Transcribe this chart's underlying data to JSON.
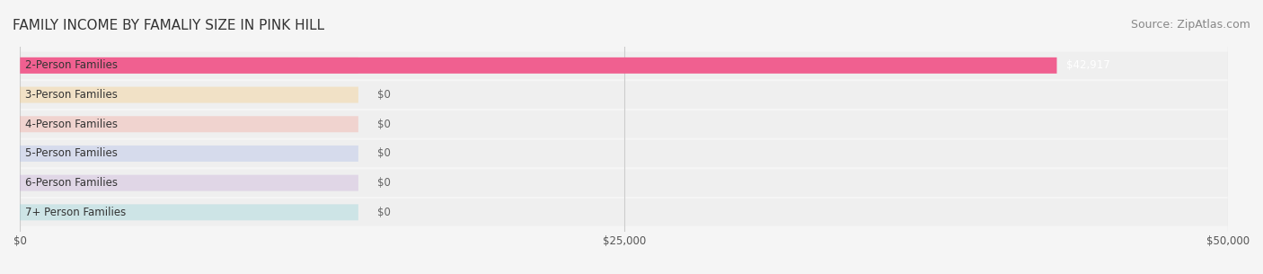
{
  "title": "FAMILY INCOME BY FAMALIY SIZE IN PINK HILL",
  "source": "Source: ZipAtlas.com",
  "categories": [
    "2-Person Families",
    "3-Person Families",
    "4-Person Families",
    "5-Person Families",
    "6-Person Families",
    "7+ Person Families"
  ],
  "values": [
    42917,
    0,
    0,
    0,
    0,
    0
  ],
  "bar_colors": [
    "#f06090",
    "#f5c97a",
    "#f4a096",
    "#a8b8e8",
    "#c4a8d8",
    "#90d0d8"
  ],
  "label_colors": [
    "#f06090",
    "#f5c97a",
    "#f4a096",
    "#a8b8e8",
    "#c4a8d8",
    "#90d0d8"
  ],
  "xlim": [
    0,
    50000
  ],
  "xticks": [
    0,
    25000,
    50000
  ],
  "xticklabels": [
    "$0",
    "$25,000",
    "$50,000"
  ],
  "value_label_0": "$42,917",
  "zero_label": "$0",
  "background_color": "#f5f5f5",
  "bar_row_bg": "#ffffff",
  "title_fontsize": 11,
  "source_fontsize": 9,
  "label_fontsize": 8.5,
  "value_fontsize": 8.5,
  "bar_height": 0.55
}
